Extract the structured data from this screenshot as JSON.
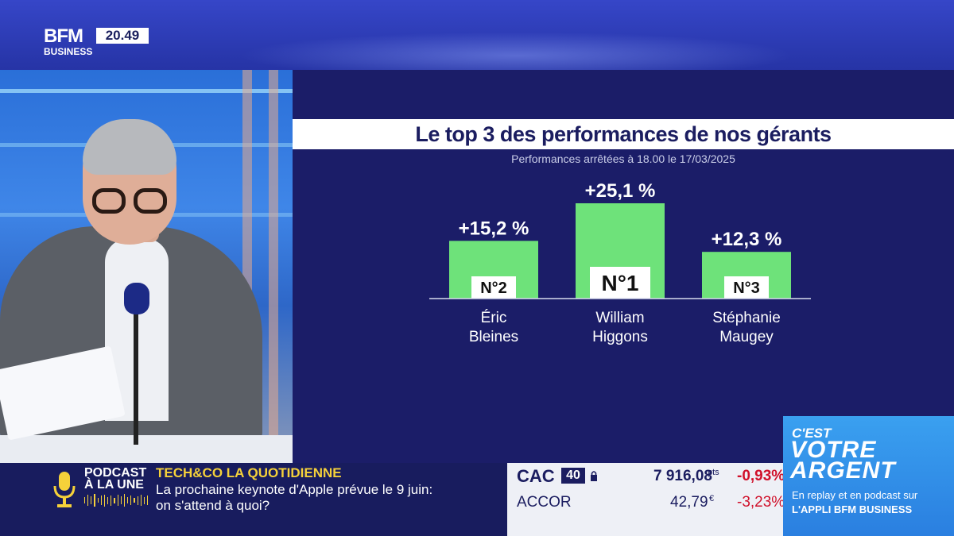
{
  "header": {
    "logo_top": "BFM",
    "logo_bottom": "BUSINESS",
    "clock": "20.49"
  },
  "chart_data": {
    "type": "bar",
    "title": "Le top 3 des performances de nos gérants",
    "subtitle": "Performances arrêtées à 18.00 le 17/03/2025",
    "categories": [
      "Éric Bleines",
      "William Higgons",
      "Stéphanie Maugey"
    ],
    "category_lines": [
      [
        "Éric",
        "Bleines"
      ],
      [
        "William",
        "Higgons"
      ],
      [
        "Stéphanie",
        "Maugey"
      ]
    ],
    "values": [
      15.2,
      25.1,
      12.3
    ],
    "value_labels": [
      "+15,2 %",
      "+25,1 %",
      "+12,3 %"
    ],
    "ranks": [
      "N°2",
      "N°1",
      "N°3"
    ],
    "unit": "%",
    "ylim": [
      0,
      30
    ],
    "bar_color": "#6ee27a",
    "grid": false,
    "legend": "none"
  },
  "bottom": {
    "podcast_label_1": "PODCAST",
    "podcast_label_2": "À LA UNE",
    "news_tag": "TECH&CO LA QUOTIDIENNE",
    "news_line_1": "La prochaine keynote d'Apple prévue le 9 juin:",
    "news_line_2": "on s'attend à quoi?"
  },
  "ticker": {
    "index_name": "CAC",
    "index_badge": "40",
    "index_value": "7 916,08",
    "index_unit": "pts",
    "index_change": "-0,93%",
    "stock_name": "ACCOR",
    "stock_value": "42,79",
    "stock_unit": "€",
    "stock_change": "-3,23%",
    "negative_color": "#d0112b"
  },
  "promo": {
    "line1": "C'EST",
    "line2": "VOTRE",
    "line3": "ARGENT",
    "line4": "En replay et en podcast sur",
    "line5": "L'APPLI BFM BUSINESS"
  }
}
